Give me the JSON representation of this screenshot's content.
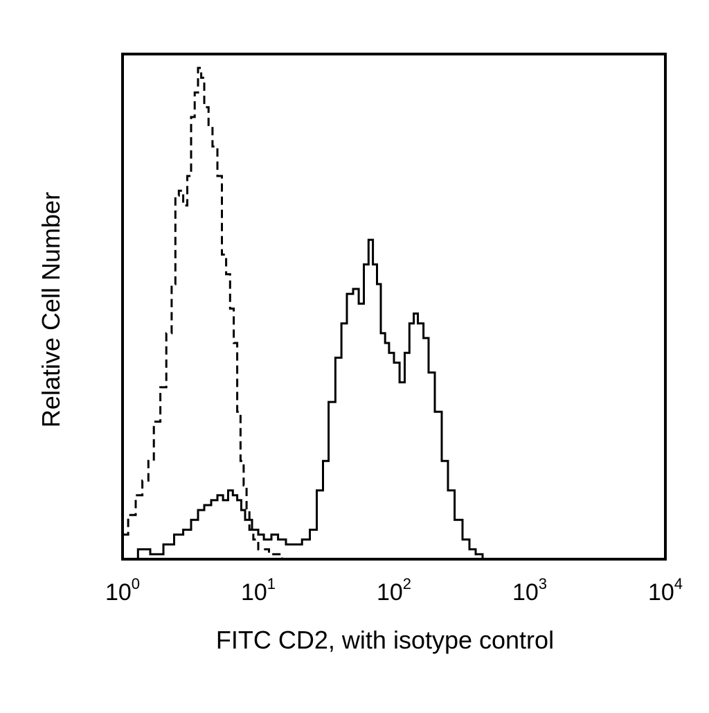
{
  "chart_data": {
    "type": "line",
    "title": "",
    "xlabel": "FITC CD2, with isotype control",
    "ylabel": "Relative Cell Number",
    "x_scale": "log10",
    "xlim": [
      1,
      10000
    ],
    "ylim": [
      0,
      1.0
    ],
    "grid": false,
    "legend": "none",
    "x_tick_labels": [
      {
        "base": "10",
        "exp": "0"
      },
      {
        "base": "10",
        "exp": "1"
      },
      {
        "base": "10",
        "exp": "2"
      },
      {
        "base": "10",
        "exp": "3"
      },
      {
        "base": "10",
        "exp": "4"
      }
    ],
    "series": [
      {
        "line_style": "dashed",
        "color": "#000000",
        "x": [
          1.0,
          1.1,
          1.25,
          1.4,
          1.55,
          1.7,
          1.9,
          2.1,
          2.3,
          2.45,
          2.6,
          2.8,
          3.0,
          3.2,
          3.4,
          3.6,
          3.8,
          4.0,
          4.3,
          4.6,
          5.0,
          5.4,
          5.8,
          6.2,
          6.6,
          7.0,
          7.4,
          7.8,
          8.2,
          8.6,
          9.2,
          10.0,
          11.0,
          12.0,
          13.5,
          15.0,
          17.0,
          20.0,
          25.0,
          30.0
        ],
        "y": [
          0.05,
          0.09,
          0.13,
          0.16,
          0.2,
          0.28,
          0.35,
          0.46,
          0.56,
          0.74,
          0.75,
          0.72,
          0.78,
          0.9,
          0.95,
          1.0,
          0.98,
          0.92,
          0.88,
          0.84,
          0.78,
          0.62,
          0.58,
          0.51,
          0.44,
          0.3,
          0.2,
          0.15,
          0.1,
          0.06,
          0.04,
          0.02,
          0.02,
          0.01,
          0.01,
          0.0,
          0.0,
          0.0,
          0.0,
          0.0
        ]
      },
      {
        "line_style": "solid",
        "color": "#000000",
        "x": [
          1.0,
          1.3,
          1.6,
          2.0,
          2.4,
          2.8,
          3.2,
          3.6,
          4.0,
          4.5,
          5.0,
          5.5,
          6.0,
          6.5,
          7.0,
          7.5,
          8.0,
          9.0,
          10.0,
          11.0,
          12.5,
          14.0,
          16.0,
          18.0,
          21.0,
          24.0,
          27.0,
          30.0,
          33.0,
          37.0,
          41.0,
          45.0,
          50.0,
          55.0,
          60.0,
          65.0,
          70.0,
          75.0,
          80.0,
          86.0,
          92.0,
          100.0,
          110.0,
          120.0,
          130.0,
          140.0,
          150.0,
          165.0,
          180.0,
          200.0,
          225.0,
          250.0,
          280.0,
          320.0,
          360.0,
          400.0,
          450.0
        ],
        "y": [
          0.0,
          0.02,
          0.01,
          0.03,
          0.05,
          0.06,
          0.08,
          0.1,
          0.11,
          0.12,
          0.13,
          0.12,
          0.14,
          0.13,
          0.12,
          0.1,
          0.08,
          0.06,
          0.05,
          0.04,
          0.05,
          0.04,
          0.03,
          0.03,
          0.04,
          0.06,
          0.14,
          0.2,
          0.32,
          0.41,
          0.48,
          0.54,
          0.55,
          0.52,
          0.6,
          0.65,
          0.6,
          0.56,
          0.46,
          0.44,
          0.42,
          0.4,
          0.36,
          0.42,
          0.48,
          0.5,
          0.48,
          0.45,
          0.38,
          0.3,
          0.2,
          0.14,
          0.08,
          0.04,
          0.02,
          0.01,
          0.0
        ]
      }
    ]
  }
}
